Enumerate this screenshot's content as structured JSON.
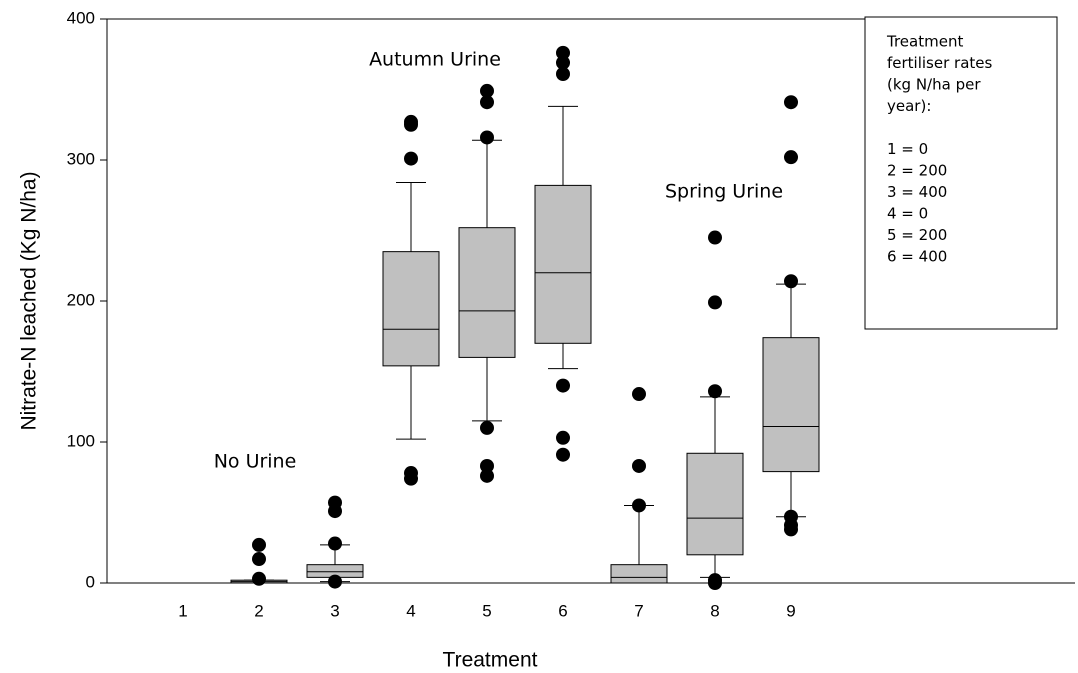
{
  "chart_data": {
    "type": "box",
    "x_label": "Treatment",
    "y_label": "Nitrate-N leached  (Kg N/ha)",
    "categories": [
      "1",
      "2",
      "3",
      "4",
      "5",
      "6",
      "7",
      "8",
      "9"
    ],
    "ylim": [
      0,
      400
    ],
    "yticks": [
      0,
      100,
      200,
      300,
      400
    ],
    "box_color": "#c0c0c0",
    "boxes": [
      {
        "q1": 0,
        "median": 0,
        "q3": 0,
        "whisker_low": 0,
        "whisker_high": 0,
        "outliers": []
      },
      {
        "q1": 0,
        "median": 1,
        "q3": 2,
        "whisker_low": 0,
        "whisker_high": 2,
        "outliers": [
          27,
          17,
          3
        ]
      },
      {
        "q1": 4,
        "median": 8,
        "q3": 13,
        "whisker_low": 1,
        "whisker_high": 27,
        "outliers": [
          57,
          51,
          28,
          1
        ]
      },
      {
        "q1": 154,
        "median": 180,
        "q3": 235,
        "whisker_low": 102,
        "whisker_high": 284,
        "outliers": [
          327,
          325,
          301,
          78,
          74
        ]
      },
      {
        "q1": 160,
        "median": 193,
        "q3": 252,
        "whisker_low": 115,
        "whisker_high": 314,
        "outliers": [
          349,
          341,
          316,
          110,
          83,
          76
        ]
      },
      {
        "q1": 170,
        "median": 220,
        "q3": 282,
        "whisker_low": 152,
        "whisker_high": 338,
        "outliers": [
          376,
          369,
          361,
          140,
          103,
          91
        ]
      },
      {
        "q1": 0,
        "median": 4,
        "q3": 13,
        "whisker_low": 0,
        "whisker_high": 55,
        "outliers": [
          134,
          83,
          55
        ]
      },
      {
        "q1": 20,
        "median": 46,
        "q3": 92,
        "whisker_low": 4,
        "whisker_high": 132,
        "outliers": [
          245,
          199,
          136,
          2,
          0
        ]
      },
      {
        "q1": 79,
        "median": 111,
        "q3": 174,
        "whisker_low": 47,
        "whisker_high": 212,
        "outliers": [
          341,
          302,
          214,
          47,
          41,
          38
        ]
      }
    ],
    "annotations": [
      "No Urine",
      "Autumn Urine",
      "Spring Urine"
    ],
    "note_lines": [
      "Treatment",
      "fertiliser rates",
      "(kg N/ha per",
      "year):",
      "1 = 0",
      "2 = 200",
      "3 = 400",
      "4 = 0",
      "5 = 200",
      "6 = 400"
    ]
  }
}
